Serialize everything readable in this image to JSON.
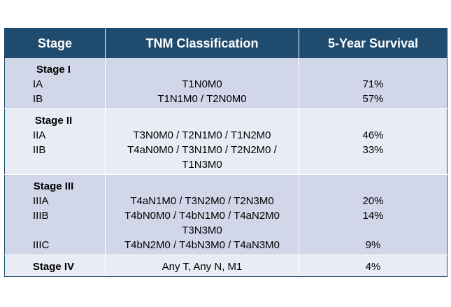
{
  "headers": {
    "stage": "Stage",
    "tnm": "TNM Classification",
    "survival": "5-Year Survival"
  },
  "groups": [
    {
      "title": "Stage I",
      "rows": [
        {
          "sub": "IA",
          "tnm": [
            "T1N0M0"
          ],
          "survival": "71%"
        },
        {
          "sub": "IB",
          "tnm": [
            "T1N1M0 / T2N0M0"
          ],
          "survival": "57%"
        }
      ]
    },
    {
      "title": "Stage II",
      "rows": [
        {
          "sub": "IIA",
          "tnm": [
            "T3N0M0 / T2N1M0 / T1N2M0"
          ],
          "survival": "46%"
        },
        {
          "sub": "IIB",
          "tnm": [
            "T4aN0M0 / T3N1M0 / T2N2M0 /",
            "T1N3M0"
          ],
          "survival": "33%"
        }
      ]
    },
    {
      "title": "Stage III",
      "rows": [
        {
          "sub": "IIIA",
          "tnm": [
            "T4aN1M0 / T3N2M0 / T2N3M0"
          ],
          "survival": "20%"
        },
        {
          "sub": "IIIB",
          "tnm": [
            "T4bN0M0 / T4bN1M0 / T4aN2M0",
            "T3N3M0"
          ],
          "survival": "14%"
        },
        {
          "sub": "IIIC",
          "tnm": [
            "T4bN2M0 / T4bN3M0 / T4aN3M0"
          ],
          "survival": "9%"
        }
      ]
    },
    {
      "title": "Stage IV",
      "tnm": "Any T, Any N, M1",
      "survival": "4%"
    }
  ],
  "colors": {
    "header": "#1f4b6e",
    "row_dark": "#d1d7e9",
    "row_light": "#e9ecf4"
  }
}
